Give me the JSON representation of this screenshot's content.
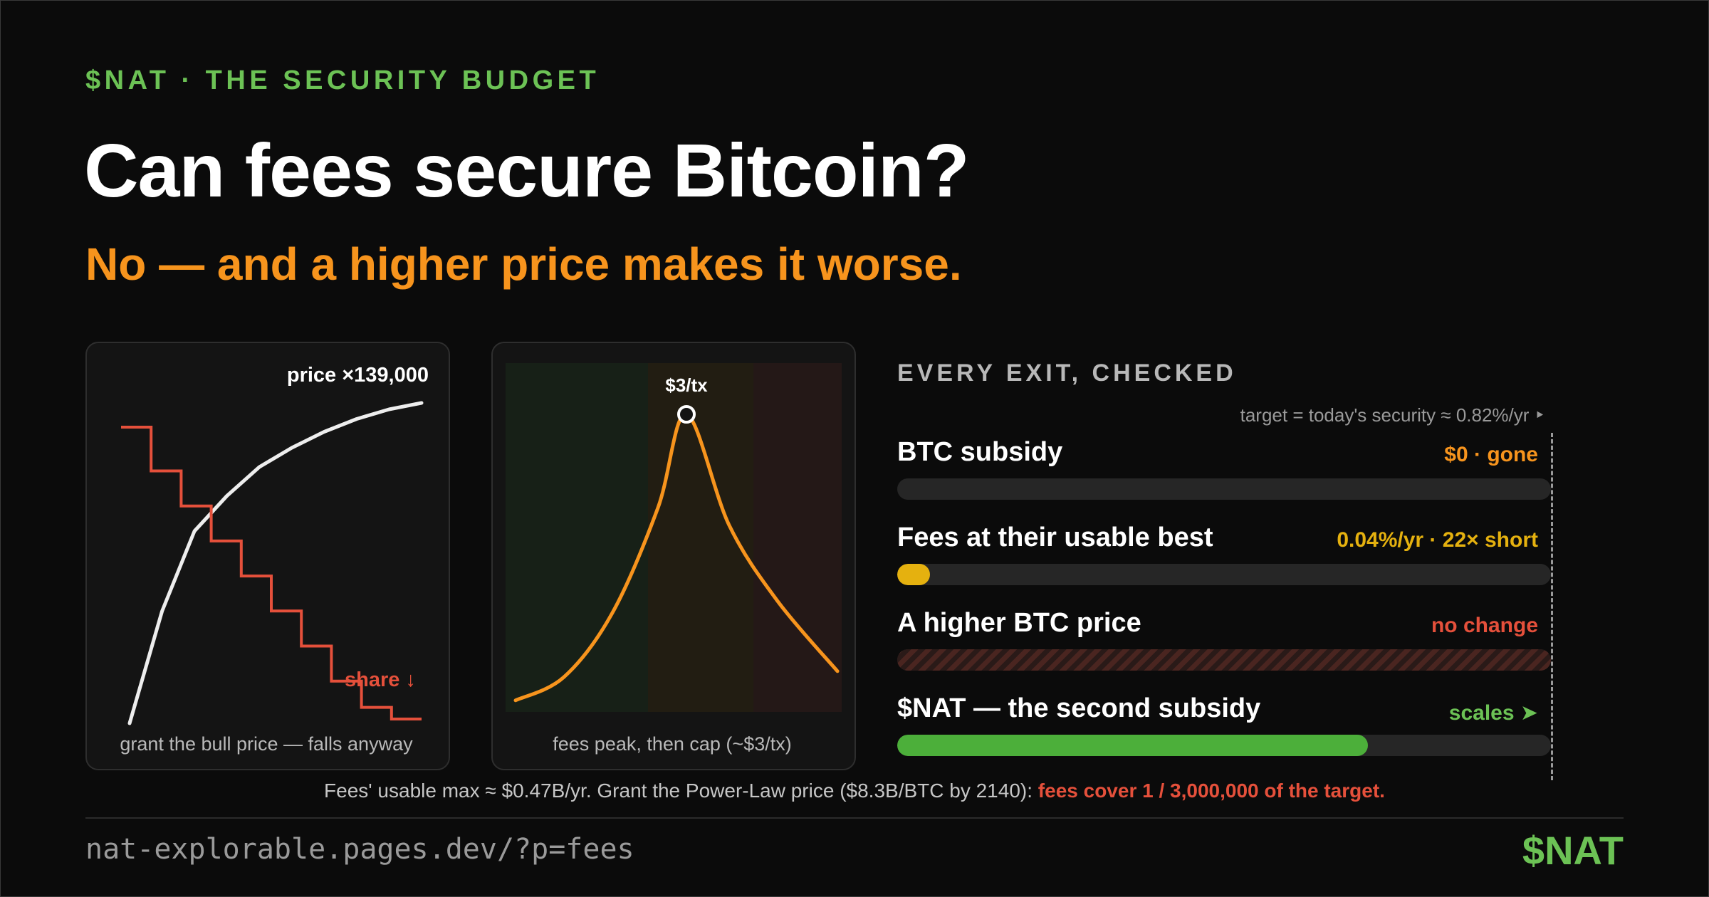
{
  "header": {
    "eyebrow": "$NAT · THE SECURITY BUDGET",
    "title": "Can fees secure Bitcoin?",
    "subtitle": "No — and a higher price makes it worse."
  },
  "panel_left": {
    "caption": "grant the bull price — falls anyway",
    "chart_data": {
      "type": "line",
      "annotations": [
        "price ×139,000",
        "share ↓"
      ],
      "series": [
        {
          "name": "price",
          "color": "#eeeeee",
          "trend": "rising, concave",
          "values": [
            0,
            0.35,
            0.6,
            0.71,
            0.8,
            0.86,
            0.91,
            0.95,
            0.98,
            1.0
          ]
        },
        {
          "name": "share",
          "color": "#e5503b",
          "trend": "step-down",
          "values": [
            1.0,
            0.85,
            0.73,
            0.61,
            0.49,
            0.37,
            0.25,
            0.13,
            0.04,
            0.0
          ]
        }
      ]
    }
  },
  "panel_middle": {
    "caption": "fees peak, then cap (~$3/tx)",
    "chart_data": {
      "type": "line",
      "annotations": [
        "$3/tx"
      ],
      "zones": [
        "green",
        "amber",
        "red"
      ],
      "series": [
        {
          "name": "fees",
          "color": "#f7941d",
          "values": [
            0.02,
            0.1,
            0.32,
            0.68,
            1.0,
            0.62,
            0.36,
            0.12
          ]
        }
      ]
    }
  },
  "exits": {
    "title": "EVERY EXIT, CHECKED",
    "target_note": "target = today's security ≈ 0.82%/yr ‣",
    "rows": [
      {
        "label": "BTC subsidy",
        "value": "$0 · gone",
        "value_color": "#f7941d",
        "fill_fraction": 0,
        "bar_color": "#262626"
      },
      {
        "label": "Fees at their usable best",
        "value": "0.04%/yr · 22× short",
        "value_color": "#e5b10f",
        "fill_fraction": 0.05,
        "bar_color": "#e5b10f"
      },
      {
        "label": "A higher BTC price",
        "value": "no change",
        "value_color": "#e5503b",
        "fill_fraction": 1,
        "bar_color": "hatched"
      },
      {
        "label": "$NAT — the second subsidy",
        "value": "scales ➤",
        "value_color": "#6cc255",
        "fill_fraction": 0.72,
        "bar_color": "#4caf3a"
      }
    ]
  },
  "footnote": {
    "text": "Fees' usable max ≈ $0.47B/yr. Grant the Power-Law price ($8.3B/BTC by 2140): ",
    "highlight": "fees cover 1 / 3,000,000 of the target."
  },
  "footer": {
    "url": "nat-explorable.pages.dev/?p=fees",
    "brand": "$NAT"
  },
  "colors": {
    "background": "#0b0b0b",
    "green": "#6cc255",
    "orange": "#f7941d",
    "red": "#e5503b",
    "yellow": "#e5b10f"
  }
}
